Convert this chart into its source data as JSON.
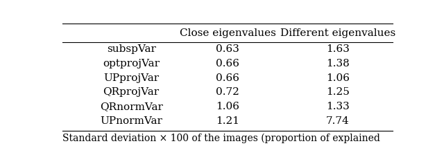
{
  "col_headers": [
    "",
    "Close eigenvalues",
    "Different eigenvalues"
  ],
  "rows": [
    [
      "subspVar",
      "0.63",
      "1.63"
    ],
    [
      "optprojVar",
      "0.66",
      "1.38"
    ],
    [
      "UPprojVar",
      "0.66",
      "1.06"
    ],
    [
      "QRprojVar",
      "0.72",
      "1.25"
    ],
    [
      "QRnormVar",
      "1.06",
      "1.33"
    ],
    [
      "UPnormVar",
      "1.21",
      "7.74"
    ]
  ],
  "footer_text": "Standard deviation × 100 of the images (proportion of explained",
  "background_color": "#ffffff",
  "text_color": "#000000",
  "font_size": 11,
  "header_font_size": 11
}
